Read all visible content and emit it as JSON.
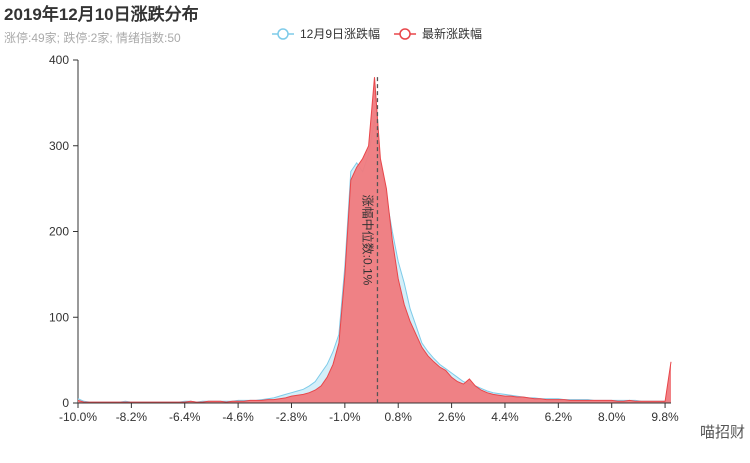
{
  "chart_data": {
    "type": "area",
    "title": "2019年12月10日涨跌分布",
    "subtitle": "涨停:49家; 跌停:2家; 情绪指数:50",
    "watermark": "喵招财",
    "x": [
      -10,
      -9.8,
      -9.6,
      -9.4,
      -9.2,
      -9,
      -8.8,
      -8.6,
      -8.4,
      -8.2,
      -8,
      -7.8,
      -7.6,
      -7.4,
      -7.2,
      -7,
      -6.8,
      -6.6,
      -6.4,
      -6.2,
      -6,
      -5.8,
      -5.6,
      -5.4,
      -5.2,
      -5,
      -4.8,
      -4.6,
      -4.4,
      -4.2,
      -4,
      -3.8,
      -3.6,
      -3.4,
      -3.2,
      -3,
      -2.8,
      -2.6,
      -2.4,
      -2.2,
      -2,
      -1.8,
      -1.6,
      -1.4,
      -1.2,
      -1,
      -0.8,
      -0.6,
      -0.4,
      -0.2,
      0,
      0.2,
      0.4,
      0.6,
      0.8,
      1,
      1.2,
      1.4,
      1.6,
      1.8,
      2,
      2.2,
      2.4,
      2.6,
      2.8,
      3,
      3.2,
      3.4,
      3.6,
      3.8,
      4,
      4.2,
      4.4,
      4.6,
      4.8,
      5,
      5.2,
      5.4,
      5.6,
      5.8,
      6,
      6.2,
      6.4,
      6.6,
      6.8,
      7,
      7.2,
      7.4,
      7.6,
      7.8,
      8,
      8.2,
      8.4,
      8.6,
      8.8,
      9,
      9.2,
      9.4,
      9.6,
      9.8,
      10
    ],
    "series": [
      {
        "name": "12月9日涨跌幅",
        "color": "#7ecbe9",
        "fill": "#c9ebf8",
        "values": [
          5,
          2,
          1,
          1,
          1,
          1,
          1,
          1,
          2,
          1,
          1,
          1,
          1,
          1,
          1,
          1,
          1,
          1,
          2,
          2,
          1,
          2,
          2,
          2,
          2,
          2,
          2,
          3,
          3,
          3,
          3,
          4,
          5,
          6,
          8,
          10,
          12,
          14,
          16,
          20,
          25,
          35,
          45,
          60,
          80,
          160,
          270,
          280,
          270,
          290,
          330,
          280,
          240,
          200,
          165,
          140,
          110,
          90,
          70,
          60,
          52,
          45,
          40,
          35,
          30,
          25,
          22,
          20,
          17,
          14,
          12,
          11,
          10,
          9,
          8,
          7,
          6,
          6,
          5,
          5,
          5,
          5,
          4,
          4,
          4,
          4,
          4,
          3,
          3,
          3,
          3,
          3,
          3,
          3,
          3,
          2,
          2,
          2,
          2,
          2,
          2
        ]
      },
      {
        "name": "最新涨跌幅",
        "color": "#e8464a",
        "fill": "#f07a7e",
        "values": [
          3,
          1,
          1,
          1,
          1,
          1,
          1,
          1,
          1,
          1,
          1,
          1,
          1,
          1,
          1,
          1,
          1,
          1,
          1,
          2,
          1,
          1,
          2,
          2,
          2,
          1,
          2,
          2,
          2,
          3,
          3,
          3,
          4,
          4,
          5,
          6,
          8,
          9,
          10,
          12,
          15,
          20,
          30,
          45,
          70,
          150,
          260,
          275,
          285,
          300,
          380,
          285,
          250,
          190,
          145,
          115,
          95,
          80,
          65,
          55,
          48,
          42,
          38,
          30,
          25,
          22,
          28,
          20,
          15,
          12,
          10,
          9,
          8,
          8,
          7,
          7,
          6,
          5,
          5,
          4,
          4,
          4,
          4,
          3,
          3,
          3,
          3,
          3,
          3,
          3,
          3,
          2,
          2,
          3,
          2,
          2,
          2,
          2,
          2,
          2,
          48
        ]
      }
    ],
    "xlim": [
      -10,
      10
    ],
    "xticks": [
      {
        "value": -10,
        "label": "-10.0%"
      },
      {
        "value": -8.2,
        "label": "-8.2%"
      },
      {
        "value": -6.4,
        "label": "-6.4%"
      },
      {
        "value": -4.6,
        "label": "-4.6%"
      },
      {
        "value": -2.8,
        "label": "-2.8%"
      },
      {
        "value": -1,
        "label": "-1.0%"
      },
      {
        "value": 0.8,
        "label": "0.8%"
      },
      {
        "value": 2.6,
        "label": "2.6%"
      },
      {
        "value": 4.4,
        "label": "4.4%"
      },
      {
        "value": 6.2,
        "label": "6.2%"
      },
      {
        "value": 8,
        "label": "8.0%"
      },
      {
        "value": 9.8,
        "label": "9.8%"
      }
    ],
    "ylim": [
      0,
      400
    ],
    "yticks": [
      0,
      100,
      200,
      300,
      400
    ],
    "markline": {
      "value": 0.1,
      "label": "涨幅中位数:0.1%"
    }
  }
}
